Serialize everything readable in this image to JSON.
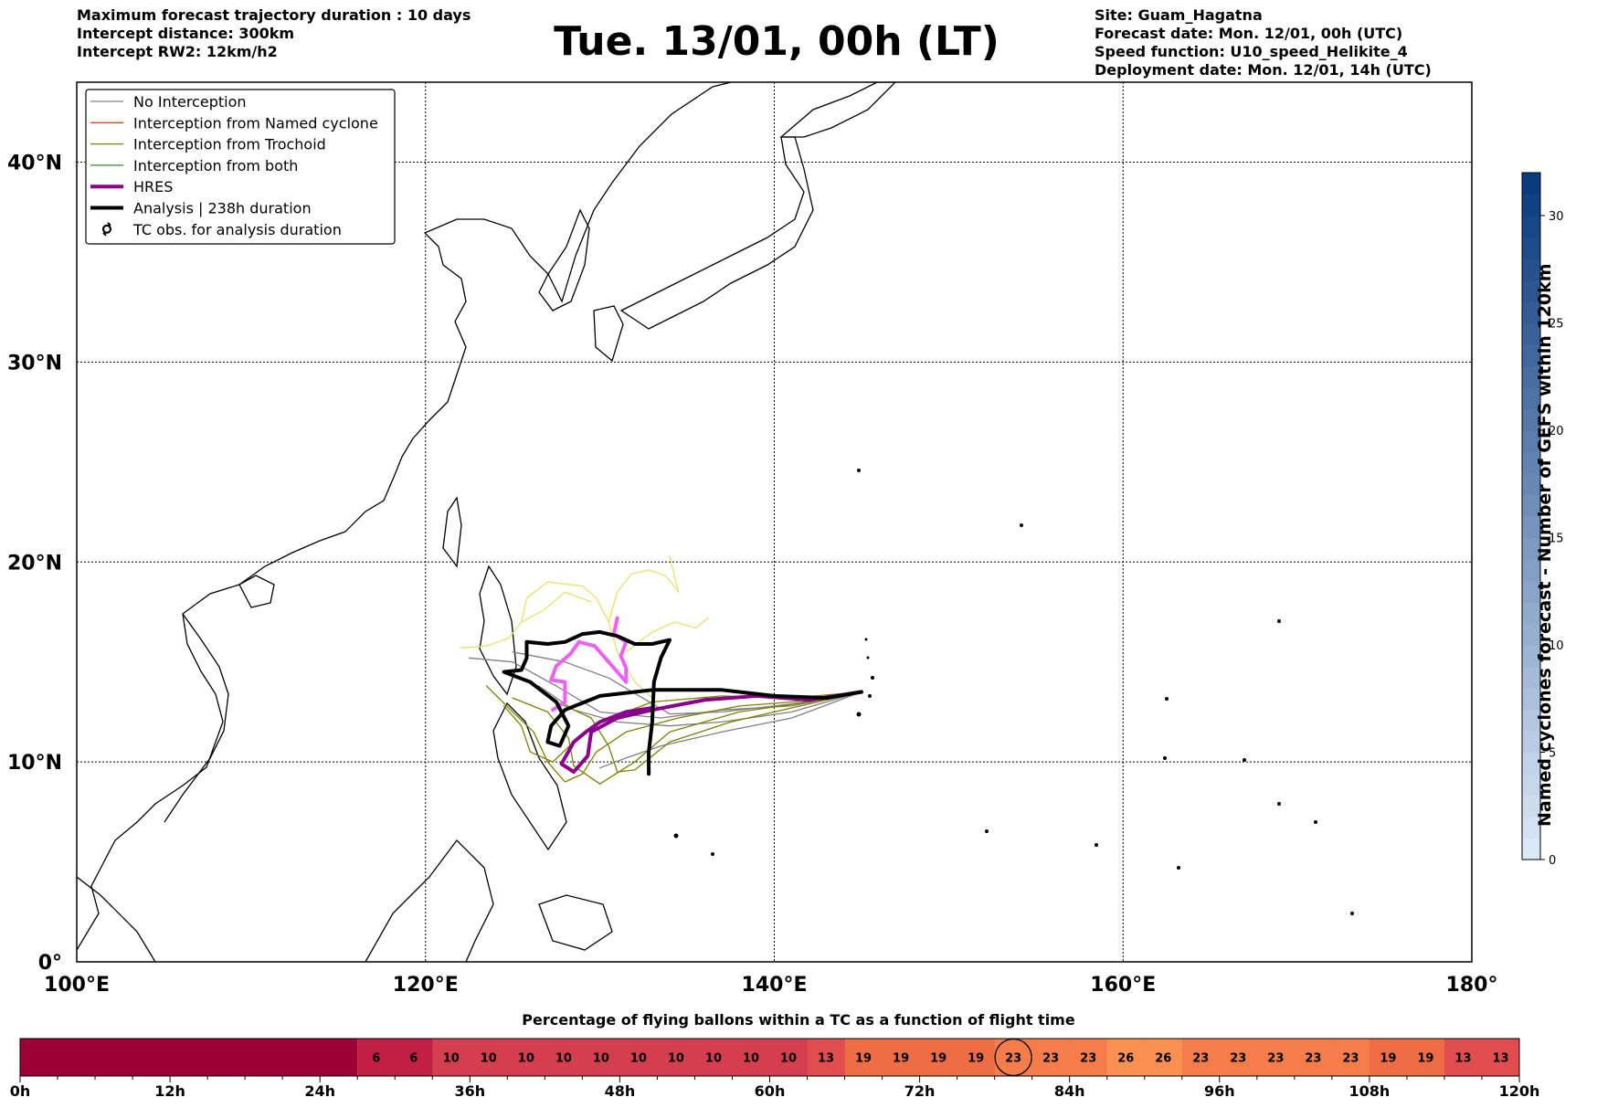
{
  "header": {
    "left_lines": [
      "Maximum forecast trajectory duration : 10 days",
      "Intercept distance: 300km",
      "Intercept RW2: 12km/h2"
    ],
    "right_lines": [
      "Site: Guam_Hagatna",
      "Forecast date: Mon. 12/01, 00h (UTC)",
      "Speed function: U10_speed_Helikite_4",
      "Deployment date: Mon. 12/01, 14h (UTC)"
    ],
    "title": "Tue. 13/01, 00h (LT)"
  },
  "map": {
    "lon_range": [
      100,
      180
    ],
    "lat_range": [
      0,
      44
    ],
    "lat_labels": [
      "0°",
      "10°N",
      "20°N",
      "30°N",
      "40°N"
    ],
    "lat_values": [
      0,
      10,
      20,
      30,
      40
    ],
    "lon_labels": [
      "100°E",
      "120°E",
      "140°E",
      "160°E",
      "180°"
    ],
    "lon_values": [
      100,
      120,
      140,
      160,
      180
    ],
    "grid": "dotted",
    "legend_position": "top-left",
    "legend": [
      {
        "label": "No Interception",
        "color": "#808080",
        "style": "thin-line"
      },
      {
        "label": "Interception from Named cyclone",
        "color": "#e8401c",
        "style": "thin-line"
      },
      {
        "label": "Interception from Trochoid",
        "color": "#808000",
        "style": "thin-line"
      },
      {
        "label": "Interception from both",
        "color": "#2e8b2e",
        "style": "thin-line"
      },
      {
        "label": "HRES",
        "color": "#8b008b",
        "style": "thick-line"
      },
      {
        "label": "Analysis | 238h duration",
        "color": "#000000",
        "style": "thick-line"
      },
      {
        "label": "TC obs. for analysis duration",
        "color": "#000000",
        "style": "cyclone-symbol"
      }
    ],
    "trajectories": {
      "analysis": [
        [
          145.0,
          13.5
        ],
        [
          143.0,
          13.2
        ],
        [
          140.0,
          13.3
        ],
        [
          137.0,
          13.6
        ],
        [
          133.0,
          13.6
        ],
        [
          130.0,
          13.3
        ],
        [
          128.0,
          12.6
        ],
        [
          127.2,
          11.8
        ],
        [
          127.0,
          11.0
        ],
        [
          127.7,
          10.8
        ],
        [
          128.2,
          11.8
        ],
        [
          127.5,
          13.0
        ],
        [
          126.0,
          14.0
        ],
        [
          124.5,
          14.5
        ],
        [
          125.5,
          14.6
        ],
        [
          125.8,
          15.2
        ],
        [
          125.8,
          16.0
        ],
        [
          127.0,
          15.9
        ],
        [
          128.0,
          16.0
        ],
        [
          129.0,
          16.4
        ],
        [
          130.0,
          16.5
        ],
        [
          131.0,
          16.3
        ],
        [
          132.0,
          15.9
        ],
        [
          133.0,
          15.9
        ],
        [
          134.0,
          16.1
        ],
        [
          133.5,
          15.2
        ],
        [
          133.1,
          14.0
        ],
        [
          133.0,
          12.0
        ],
        [
          132.8,
          10.5
        ],
        [
          132.8,
          9.4
        ]
      ],
      "hres": [
        [
          145.0,
          13.5
        ],
        [
          142.0,
          13.1
        ],
        [
          139.0,
          13.3
        ],
        [
          136.0,
          13.1
        ],
        [
          133.0,
          12.6
        ],
        [
          131.0,
          12.2
        ],
        [
          129.5,
          11.5
        ],
        [
          129.3,
          10.3
        ],
        [
          128.5,
          9.5
        ],
        [
          127.8,
          9.9
        ],
        [
          128.5,
          11.0
        ],
        [
          129.2,
          11.5
        ],
        [
          130.0,
          12.0
        ],
        [
          131.5,
          12.5
        ],
        [
          133.0,
          12.7
        ]
      ],
      "pink": [
        [
          131.0,
          17.2
        ],
        [
          130.8,
          16.4
        ],
        [
          131.5,
          16.0
        ],
        [
          131.2,
          15.3
        ],
        [
          131.5,
          14.7
        ],
        [
          131.5,
          14.0
        ],
        [
          130.5,
          15.0
        ],
        [
          129.7,
          15.8
        ],
        [
          128.8,
          16.0
        ],
        [
          128.3,
          15.4
        ],
        [
          127.5,
          14.8
        ],
        [
          127.2,
          14.1
        ],
        [
          128.0,
          14.0
        ],
        [
          128.0,
          13.0
        ],
        [
          127.3,
          12.6
        ]
      ],
      "grey": [
        [
          [
            145.0,
            13.5
          ],
          [
            141.0,
            12.8
          ],
          [
            137.0,
            12.6
          ],
          [
            133.5,
            12.2
          ],
          [
            130.0,
            12.5
          ],
          [
            127.5,
            13.8
          ],
          [
            125.0,
            15.0
          ],
          [
            122.5,
            15.2
          ]
        ],
        [
          [
            145.0,
            13.5
          ],
          [
            141.0,
            12.2
          ],
          [
            137.0,
            11.5
          ],
          [
            133.5,
            10.8
          ],
          [
            131.5,
            10.2
          ],
          [
            130.0,
            9.7
          ]
        ],
        [
          [
            145.0,
            13.5
          ],
          [
            141.0,
            12.5
          ],
          [
            137.0,
            12.0
          ],
          [
            134.0,
            11.8
          ],
          [
            131.0,
            12.0
          ],
          [
            128.5,
            12.6
          ],
          [
            126.5,
            13.8
          ]
        ],
        [
          [
            145.0,
            13.5
          ],
          [
            141.0,
            12.9
          ],
          [
            137.0,
            12.5
          ],
          [
            134.0,
            12.4
          ],
          [
            130.5,
            14.2
          ],
          [
            128.0,
            15.0
          ],
          [
            125.0,
            15.5
          ]
        ]
      ],
      "olive": [
        [
          [
            145.0,
            13.5
          ],
          [
            141.0,
            13.0
          ],
          [
            138.0,
            12.8
          ],
          [
            134.5,
            12.2
          ],
          [
            131.5,
            11.5
          ],
          [
            129.8,
            10.5
          ],
          [
            129.0,
            9.4
          ],
          [
            128.0,
            9.0
          ],
          [
            127.0,
            10.0
          ],
          [
            126.2,
            11.5
          ],
          [
            125.0,
            12.5
          ],
          [
            123.5,
            13.8
          ]
        ],
        [
          [
            145.0,
            13.5
          ],
          [
            141.0,
            13.2
          ],
          [
            137.0,
            13.3
          ],
          [
            133.0,
            13.0
          ],
          [
            130.0,
            12.0
          ],
          [
            128.5,
            11.0
          ],
          [
            127.3,
            10.0
          ],
          [
            126.0,
            10.5
          ],
          [
            125.5,
            11.8
          ],
          [
            124.5,
            12.8
          ]
        ],
        [
          [
            145.0,
            13.5
          ],
          [
            142.0,
            13.0
          ],
          [
            138.0,
            12.5
          ],
          [
            134.0,
            11.5
          ],
          [
            132.0,
            10.0
          ],
          [
            130.0,
            8.9
          ],
          [
            128.5,
            9.8
          ],
          [
            128.2,
            11.2
          ],
          [
            127.0,
            12.5
          ],
          [
            125.0,
            13.2
          ]
        ],
        [
          [
            145.0,
            13.5
          ],
          [
            141.0,
            12.7
          ],
          [
            137.5,
            12.0
          ],
          [
            134.0,
            11.0
          ],
          [
            132.0,
            9.6
          ],
          [
            131.0,
            9.5
          ],
          [
            130.5,
            10.8
          ],
          [
            129.5,
            12.2
          ],
          [
            127.5,
            13.0
          ]
        ]
      ],
      "yellow": [
        [
          [
            133.0,
            13.2
          ],
          [
            132.0,
            14.0
          ],
          [
            131.0,
            15.5
          ],
          [
            130.5,
            17.0
          ],
          [
            129.8,
            18.2
          ],
          [
            129.0,
            18.8
          ],
          [
            127.0,
            19.0
          ],
          [
            125.8,
            18.2
          ],
          [
            125.5,
            17.0
          ],
          [
            124.8,
            16.2
          ],
          [
            123.5,
            15.8
          ],
          [
            122.0,
            15.7
          ]
        ],
        [
          [
            130.5,
            17.0
          ],
          [
            131.0,
            18.5
          ],
          [
            131.8,
            19.4
          ],
          [
            132.8,
            19.6
          ],
          [
            133.8,
            19.3
          ],
          [
            134.5,
            18.5
          ],
          [
            134.0,
            20.3
          ]
        ],
        [
          [
            131.5,
            15.5
          ],
          [
            133.0,
            16.5
          ],
          [
            134.3,
            17.0
          ],
          [
            135.5,
            16.7
          ],
          [
            136.2,
            17.2
          ]
        ],
        [
          [
            125.5,
            17.0
          ],
          [
            126.8,
            17.6
          ],
          [
            128.0,
            18.5
          ],
          [
            129.5,
            18.0
          ]
        ]
      ]
    }
  },
  "colorbar": {
    "label": "Named cyclones forecast - Number of GEFS within 120km",
    "ticks": [
      0,
      5,
      10,
      15,
      20,
      25,
      30
    ],
    "max": 32,
    "color_low": "#dbe8f6",
    "color_high": "#0b3b7e"
  },
  "strip": {
    "title": "Percentage of flying ballons within a TC as a function of flight time",
    "tick_labels": [
      "0h",
      "12h",
      "24h",
      "36h",
      "48h",
      "60h",
      "72h",
      "84h",
      "96h",
      "108h",
      "120h"
    ],
    "hours_per_cell": 3,
    "blank_cells": 9,
    "blank_color": "#9e0136",
    "values": [
      6,
      6,
      10,
      10,
      10,
      10,
      10,
      10,
      10,
      10,
      10,
      10,
      13,
      19,
      19,
      19,
      19,
      23,
      23,
      23,
      26,
      26,
      23,
      23,
      23,
      23,
      23,
      19,
      19,
      13,
      13
    ],
    "highlight_index": 17,
    "value_colors": {
      "6": "#c21f44",
      "10": "#d53e4f",
      "13": "#e04d4e",
      "19": "#f06c45",
      "23": "#f57d4a",
      "26": "#fa9051"
    }
  }
}
